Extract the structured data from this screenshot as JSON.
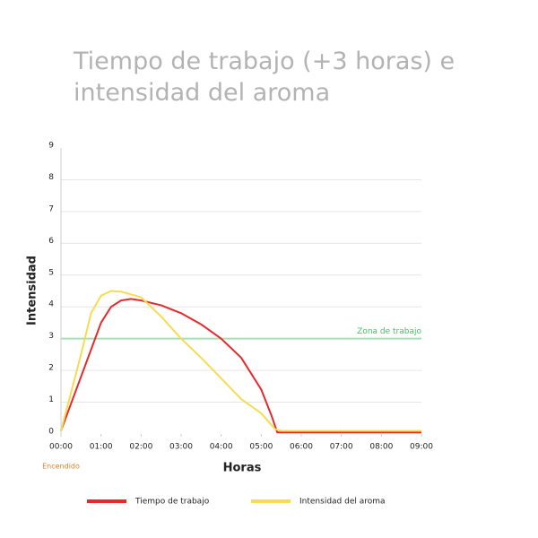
{
  "chart_data": {
    "type": "line",
    "title": [
      "Tiempo de trabajo (+3 horas) e",
      "intensidad del aroma"
    ],
    "x_label": "Horas",
    "y_label": "Intensidad",
    "xlim": [
      0,
      9
    ],
    "ylim": [
      0,
      9
    ],
    "xticks": [
      {
        "value": 0,
        "label": "00:00"
      },
      {
        "value": 1,
        "label": "01:00"
      },
      {
        "value": 2,
        "label": "02:00"
      },
      {
        "value": 3,
        "label": "03:00"
      },
      {
        "value": 4,
        "label": "04:00"
      },
      {
        "value": 5,
        "label": "05:00"
      },
      {
        "value": 6,
        "label": "06:00"
      },
      {
        "value": 7,
        "label": "07:00"
      },
      {
        "value": 8,
        "label": "08:00"
      },
      {
        "value": 9,
        "label": "09:00"
      }
    ],
    "yticks": [
      0,
      1,
      2,
      3,
      4,
      5,
      6,
      7,
      8,
      9
    ],
    "grid": true,
    "reference_line": {
      "value": 3,
      "label": "Zona de trabajo",
      "color": "#9fe3b8",
      "label_color": "#3cc46a"
    },
    "annotation": {
      "text": "Encendido",
      "x": 0,
      "color": "#d9822b"
    },
    "series": [
      {
        "name": "Tiempo de trabajo",
        "color": "#e8282b",
        "x": [
          0,
          0.5,
          1,
          1.25,
          1.5,
          1.75,
          2,
          2.5,
          3,
          3.5,
          4,
          4.5,
          5,
          5.25,
          5.4,
          5.5,
          9
        ],
        "values": [
          0.1,
          1.8,
          3.5,
          4.0,
          4.2,
          4.25,
          4.2,
          4.05,
          3.8,
          3.45,
          3.0,
          2.4,
          1.4,
          0.6,
          0.05,
          0.05,
          0.05
        ]
      },
      {
        "name": "Intensidad del aroma",
        "color": "#f5dc52",
        "x": [
          0,
          0.5,
          0.75,
          1,
          1.25,
          1.5,
          2,
          2.5,
          3,
          3.5,
          4,
          4.5,
          5,
          5.35,
          5.5,
          9
        ],
        "values": [
          0.1,
          2.5,
          3.8,
          4.35,
          4.5,
          4.48,
          4.3,
          3.7,
          3.0,
          2.4,
          1.75,
          1.1,
          0.65,
          0.15,
          0.1,
          0.1
        ]
      }
    ],
    "legend": "bottom"
  }
}
